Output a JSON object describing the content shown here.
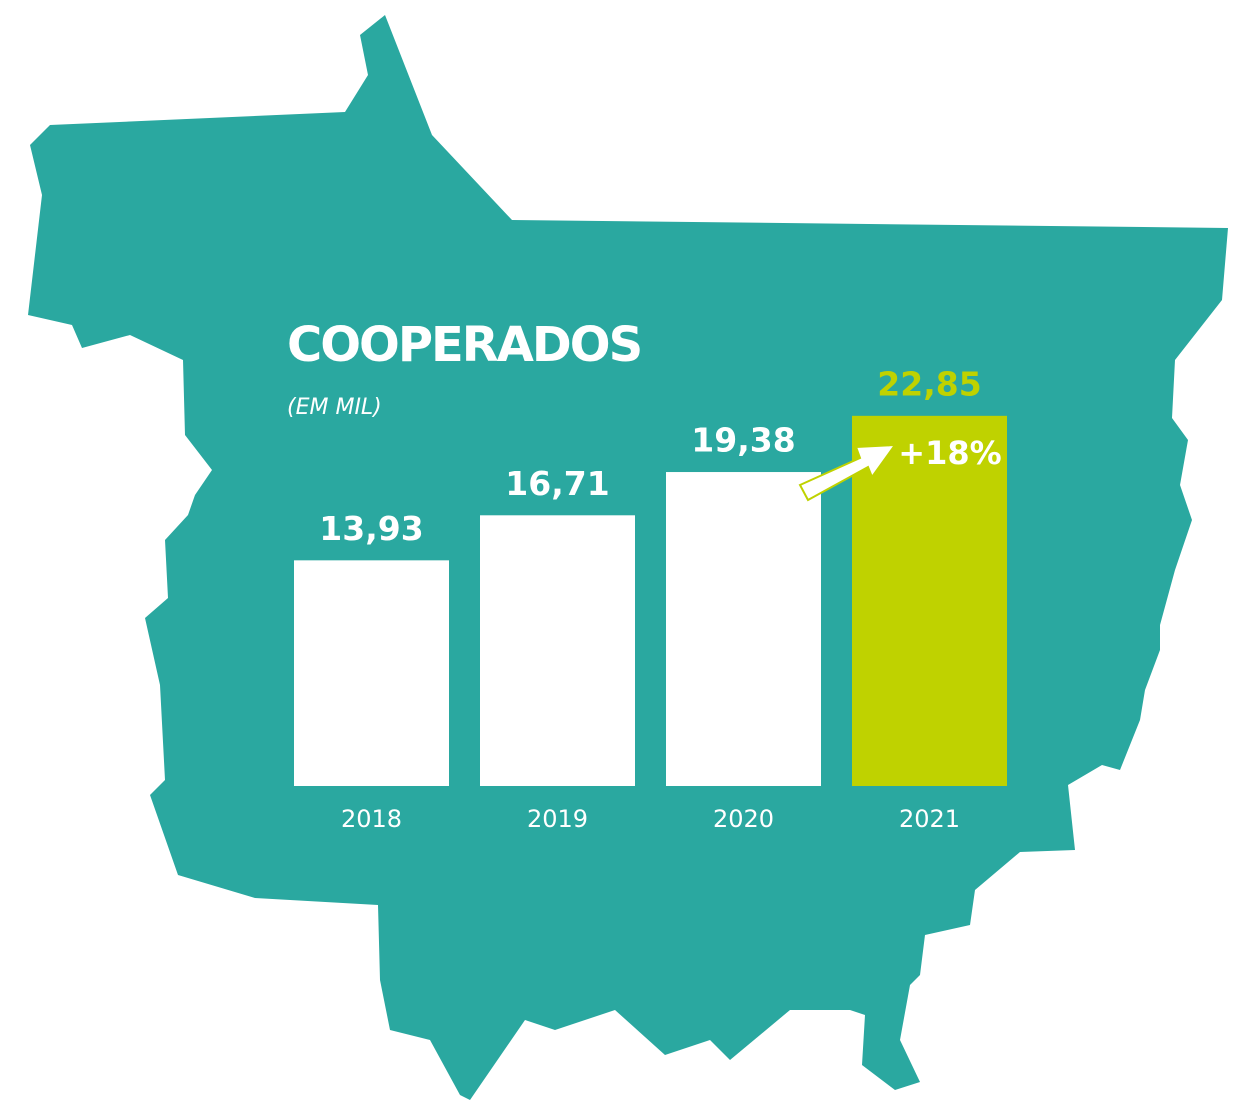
{
  "chart_data": {
    "type": "bar",
    "title": "COOPERADOS",
    "subtitle": "(EM MIL)",
    "categories": [
      "2018",
      "2019",
      "2020",
      "2021"
    ],
    "values": [
      13.93,
      16.71,
      19.38,
      22.85
    ],
    "value_labels": [
      "13,93",
      "16,71",
      "19,38",
      "22,85"
    ],
    "colors": [
      "#ffffff",
      "#ffffff",
      "#ffffff",
      "#bfd200"
    ],
    "label_colors": [
      "#ffffff",
      "#ffffff",
      "#ffffff",
      "#bfd200"
    ],
    "annotation": "+18%"
  }
}
